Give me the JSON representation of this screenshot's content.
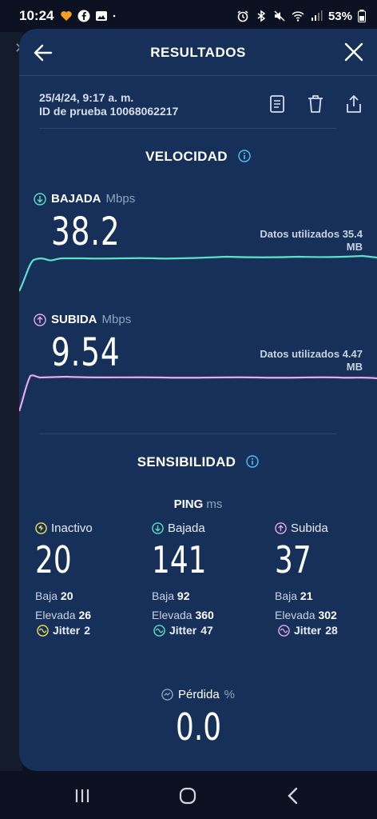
{
  "status_bar": {
    "time": "10:24",
    "battery": "53%"
  },
  "header": {
    "title": "RESULTADOS"
  },
  "meta": {
    "date": "25/4/24, 9:17 a. m.",
    "test_id": "ID de prueba 10068062217"
  },
  "speed": {
    "section_title": "VELOCIDAD",
    "download": {
      "label": "BAJADA",
      "unit": "Mbps",
      "value": "38.2",
      "data_used_label": "Datos utilizados 35.4",
      "data_used_unit": "MB",
      "color": "#5fe0c6"
    },
    "upload": {
      "label": "SUBIDA",
      "unit": "Mbps",
      "value": "9.54",
      "data_used_label": "Datos utilizados 4.47",
      "data_used_unit": "MB",
      "color": "#e7a9ee"
    }
  },
  "responsiveness": {
    "section_title": "SENSIBILIDAD",
    "ping_label": "PING",
    "ping_unit": "ms",
    "idle": {
      "label": "Inactivo",
      "value": "20",
      "low_label": "Baja",
      "low": "20",
      "high_label": "Elevada",
      "high": "26",
      "jitter_label": "Jitter",
      "jitter": "2"
    },
    "download": {
      "label": "Bajada",
      "value": "141",
      "low_label": "Baja",
      "low": "92",
      "high_label": "Elevada",
      "high": "360",
      "jitter_label": "Jitter",
      "jitter": "47"
    },
    "upload": {
      "label": "Subida",
      "value": "37",
      "low_label": "Baja",
      "low": "21",
      "high_label": "Elevada",
      "high": "302",
      "jitter_label": "Jitter",
      "jitter": "28"
    },
    "loss": {
      "label": "Pérdida",
      "unit": "%",
      "value": "0.0"
    }
  },
  "colors": {
    "card": "#16305a",
    "idle_accent": "#f2e24f",
    "download_accent": "#5fe0c6",
    "upload_accent": "#e7a9ee"
  }
}
